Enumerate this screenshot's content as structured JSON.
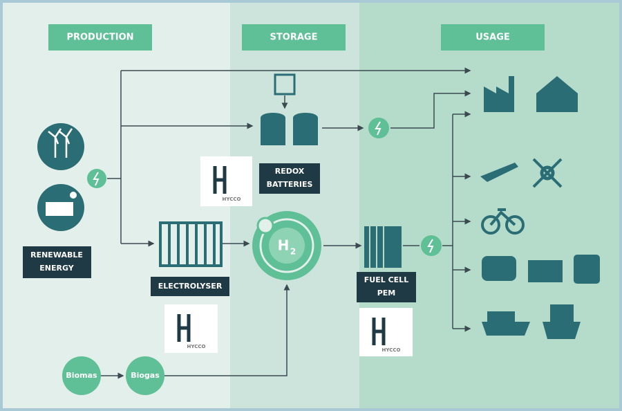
{
  "sections": [
    "PRODUCTION",
    "STORAGE",
    "USAGE"
  ],
  "labels": {
    "renewable": [
      "RENEWABLE",
      "ENERGY"
    ],
    "redox": [
      "REDOX",
      "BATTERIES"
    ],
    "electrolyser": [
      "ELECTROLYSER"
    ],
    "fuel_cell": [
      "FUEL CELL",
      "PEM"
    ]
  },
  "h2": {
    "symbol": "H",
    "subscript": "2"
  },
  "nodes": [
    "Biomas",
    "Biogas"
  ],
  "logos": [
    "HYCCO",
    "HYCCO",
    "HYCCO"
  ]
}
